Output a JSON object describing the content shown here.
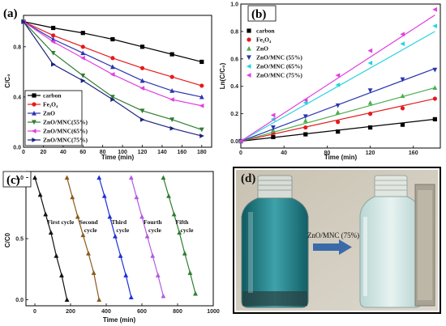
{
  "chart_data": [
    {
      "panel": "(a)",
      "type": "line",
      "xlabel": "Time (min)",
      "ylabel": "C/C₀",
      "xlim": [
        0,
        190
      ],
      "ylim": [
        0,
        1.05
      ],
      "xticks": [
        "0",
        "20",
        "40",
        "60",
        "80",
        "100",
        "120",
        "140",
        "160",
        "180"
      ],
      "yticks": [
        "0.0",
        "0.4",
        "0.8"
      ],
      "x": [
        0,
        30,
        60,
        90,
        120,
        150,
        180
      ],
      "legend_position": "bottom-left",
      "series": [
        {
          "name": "carbon",
          "color": "#000000",
          "marker": "square",
          "values": [
            1.0,
            0.95,
            0.91,
            0.86,
            0.8,
            0.74,
            0.68
          ]
        },
        {
          "name": "Fe₃O₄",
          "color": "#e41a1c",
          "marker": "circle",
          "values": [
            1.0,
            0.89,
            0.8,
            0.71,
            0.63,
            0.56,
            0.49
          ]
        },
        {
          "name": "ZnO",
          "color": "#2b35b0",
          "marker": "triangle",
          "values": [
            1.0,
            0.86,
            0.75,
            0.64,
            0.53,
            0.45,
            0.4
          ]
        },
        {
          "name": "ZnO/MNC(55%)",
          "color": "#2e7d32",
          "marker": "down-triangle",
          "values": [
            1.0,
            0.75,
            0.57,
            0.4,
            0.29,
            0.22,
            0.14
          ]
        },
        {
          "name": "ZnO/MNC(65%)",
          "color": "#e040e0",
          "marker": "triangle-left",
          "values": [
            1.0,
            0.84,
            0.71,
            0.58,
            0.47,
            0.38,
            0.33
          ]
        },
        {
          "name": "ZnO/MNC(75%)",
          "color": "#1a237e",
          "marker": "triangle-right",
          "values": [
            1.0,
            0.66,
            0.53,
            0.38,
            0.22,
            0.15,
            0.09
          ]
        }
      ]
    },
    {
      "panel": "(b)",
      "type": "scatter",
      "xlabel": "Time (min)",
      "ylabel": "Ln(C/C₀)",
      "xlim": [
        0,
        185
      ],
      "ylim": [
        -0.05,
        1.0
      ],
      "xticks": [
        "0",
        "40",
        "80",
        "120",
        "160"
      ],
      "yticks": [
        "0.0",
        "0.2",
        "0.4",
        "0.6",
        "0.8",
        "1.0"
      ],
      "x": [
        0,
        30,
        60,
        90,
        120,
        150,
        180
      ],
      "legend_position": "top-left",
      "series": [
        {
          "name": "carbon",
          "color": "#000000",
          "values": [
            0.0,
            0.03,
            0.05,
            0.07,
            0.1,
            0.12,
            0.16
          ],
          "fit": [
            0.0,
            0.16
          ]
        },
        {
          "name": "Fe₃O₄",
          "color": "#e41a1c",
          "values": [
            0.0,
            0.06,
            0.1,
            0.14,
            0.2,
            0.24,
            0.31
          ],
          "fit": [
            0.0,
            0.31
          ]
        },
        {
          "name": "ZnO",
          "color": "#4caf50",
          "values": [
            0.0,
            0.08,
            0.15,
            0.21,
            0.28,
            0.33,
            0.39
          ],
          "fit": [
            0.0,
            0.39
          ]
        },
        {
          "name": "ZnO/MNC (55%)",
          "color": "#2b35b0",
          "values": [
            0.0,
            0.1,
            0.18,
            0.26,
            0.37,
            0.45,
            0.52
          ],
          "fit": [
            0.0,
            0.53
          ]
        },
        {
          "name": "ZnO/MNC (65%)",
          "color": "#26d4e0",
          "values": [
            0.0,
            0.16,
            0.28,
            0.41,
            0.57,
            0.71,
            0.84
          ],
          "fit": [
            0.0,
            0.8
          ]
        },
        {
          "name": "ZnO/MNC (75%)",
          "color": "#e040e0",
          "values": [
            0.0,
            0.19,
            0.3,
            0.48,
            0.66,
            0.78,
            0.96
          ],
          "fit": [
            0.0,
            0.92
          ]
        }
      ]
    },
    {
      "panel": "(c)",
      "type": "line",
      "xlabel": "Time (min)",
      "ylabel": "C/C0",
      "xlim": [
        -50,
        1000
      ],
      "ylim": [
        -0.05,
        1.05
      ],
      "xticks": [
        "0",
        "200",
        "400",
        "600",
        "800",
        "1000"
      ],
      "yticks": [
        "0.0",
        "0.5",
        "1.0"
      ],
      "series": [
        {
          "name": "First cycle",
          "label": "First cycle",
          "color": "#111111",
          "x": [
            0,
            30,
            60,
            90,
            120,
            150,
            180
          ],
          "values": [
            1.0,
            0.86,
            0.7,
            0.55,
            0.36,
            0.2,
            0.0
          ]
        },
        {
          "name": "Second cycle",
          "label": "Second\ncycle",
          "color": "#8b5a1e",
          "x": [
            180,
            210,
            240,
            270,
            300,
            330,
            360
          ],
          "values": [
            1.0,
            0.84,
            0.68,
            0.53,
            0.38,
            0.22,
            0.0
          ]
        },
        {
          "name": "Third cycle",
          "label": "Third\ncycle",
          "color": "#1f2fd8",
          "x": [
            360,
            390,
            420,
            450,
            480,
            510,
            540
          ],
          "values": [
            1.0,
            0.85,
            0.68,
            0.52,
            0.36,
            0.2,
            0.02
          ]
        },
        {
          "name": "Fourth cycle",
          "label": "Fourth\ncycle",
          "color": "#b05ce0",
          "x": [
            540,
            570,
            600,
            630,
            660,
            690,
            720
          ],
          "values": [
            1.0,
            0.84,
            0.68,
            0.52,
            0.36,
            0.2,
            0.03
          ]
        },
        {
          "name": "Fifth cycle",
          "label": "Fifth\ncycle",
          "color": "#2e7d32",
          "x": [
            720,
            750,
            780,
            810,
            840,
            870,
            900
          ],
          "values": [
            1.0,
            0.85,
            0.7,
            0.55,
            0.38,
            0.22,
            0.05
          ]
        }
      ]
    }
  ],
  "photo": {
    "panel": "(d)",
    "caption": "ZnO/MNC (75%)"
  }
}
